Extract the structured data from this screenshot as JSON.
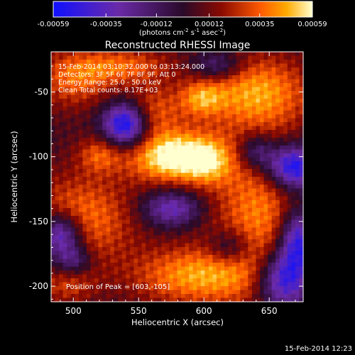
{
  "chart_data": {
    "type": "heatmap",
    "title": "Reconstructed RHESSI Image",
    "xlabel": "Heliocentric X (arcsec)",
    "ylabel": "Heliocentric Y (arcsec)",
    "xlim": [
      483,
      676
    ],
    "ylim": [
      -212,
      -19
    ],
    "xticks": [
      500,
      550,
      600,
      650
    ],
    "xtick_labels": [
      "500",
      "550",
      "600",
      "650"
    ],
    "yticks": [
      -50,
      -100,
      -150,
      -200
    ],
    "ytick_labels": [
      "-50",
      "-100",
      "-150",
      "-200"
    ],
    "colorbar": {
      "range": [
        -0.00059,
        0.00059
      ],
      "ticks": [
        -0.00059,
        -0.00035,
        -0.00012,
        0.00012,
        0.00035,
        0.00059
      ],
      "tick_labels": [
        "-0.00059",
        "-0.00035",
        "-0.00012",
        "0.00012",
        "0.00035",
        "0.00059"
      ],
      "unit_label": "(photons cm",
      "unit_parts": [
        "(photons cm",
        "-2",
        " s",
        "-1",
        " asec",
        "-2",
        ")"
      ],
      "colormap": [
        "#1010ff",
        "#6a2aa8",
        "#2a0a2a",
        "#8a0a00",
        "#ff5a00",
        "#ffaa00",
        "#ffffd0"
      ]
    },
    "annotations": [
      "15-Feb-2014 03:10:32.000 to 03:13:24.000",
      "Detectors: 3F 5F 6F 7F 8F 9F, Att 0",
      "Energy Range: 25.0 - 50.0 keV",
      "Clean     Total counts: 8.17E+03"
    ],
    "peak_label": "Position of Peak = [603,-105]",
    "peak": [
      603,
      -105
    ],
    "timestamp": "15-Feb-2014 12:23",
    "image": {
      "grid_size": 64,
      "pixel_arcsec": 3.0,
      "blobs": [
        {
          "x": 578,
          "y": -100,
          "sx": 25,
          "sy": 14,
          "amp": 0.00062
        },
        {
          "x": 603,
          "y": -105,
          "sx": 12,
          "sy": 12,
          "amp": 0.0002
        },
        {
          "x": 560,
          "y": -65,
          "sx": 16,
          "sy": 14,
          "amp": 0.00028
        },
        {
          "x": 505,
          "y": -148,
          "sx": 30,
          "sy": 24,
          "amp": 0.00036
        },
        {
          "x": 520,
          "y": -98,
          "sx": 12,
          "sy": 10,
          "amp": 0.00026
        },
        {
          "x": 598,
          "y": -55,
          "sx": 12,
          "sy": 10,
          "amp": 0.0003
        },
        {
          "x": 593,
          "y": -192,
          "sx": 34,
          "sy": 16,
          "amp": 0.0004
        },
        {
          "x": 642,
          "y": -145,
          "sx": 26,
          "sy": 44,
          "amp": 0.00036
        },
        {
          "x": 640,
          "y": -50,
          "sx": 30,
          "sy": 20,
          "amp": 0.0004
        },
        {
          "x": 500,
          "y": -40,
          "sx": 22,
          "sy": 16,
          "amp": 0.0003
        },
        {
          "x": 540,
          "y": -30,
          "sx": 26,
          "sy": 10,
          "amp": 0.00028
        },
        {
          "x": 495,
          "y": -200,
          "sx": 16,
          "sy": 10,
          "amp": 0.0002
        },
        {
          "x": 540,
          "y": -75,
          "sx": 12,
          "sy": 12,
          "amp": -0.0007
        },
        {
          "x": 490,
          "y": -160,
          "sx": 12,
          "sy": 12,
          "amp": -0.0006
        },
        {
          "x": 575,
          "y": -140,
          "sx": 16,
          "sy": 10,
          "amp": -0.0004
        },
        {
          "x": 668,
          "y": -108,
          "sx": 14,
          "sy": 12,
          "amp": -0.0007
        },
        {
          "x": 660,
          "y": -195,
          "sx": 14,
          "sy": 16,
          "amp": -0.0006
        },
        {
          "x": 672,
          "y": -165,
          "sx": 10,
          "sy": 18,
          "amp": -0.0006
        },
        {
          "x": 620,
          "y": -170,
          "sx": 12,
          "sy": 10,
          "amp": -0.0003
        },
        {
          "x": 640,
          "y": -96,
          "sx": 10,
          "sy": 10,
          "amp": -0.00035
        },
        {
          "x": 610,
          "y": -30,
          "sx": 14,
          "sy": 8,
          "amp": -0.0003
        },
        {
          "x": 500,
          "y": -180,
          "sx": 10,
          "sy": 8,
          "amp": -0.0003
        }
      ]
    }
  }
}
